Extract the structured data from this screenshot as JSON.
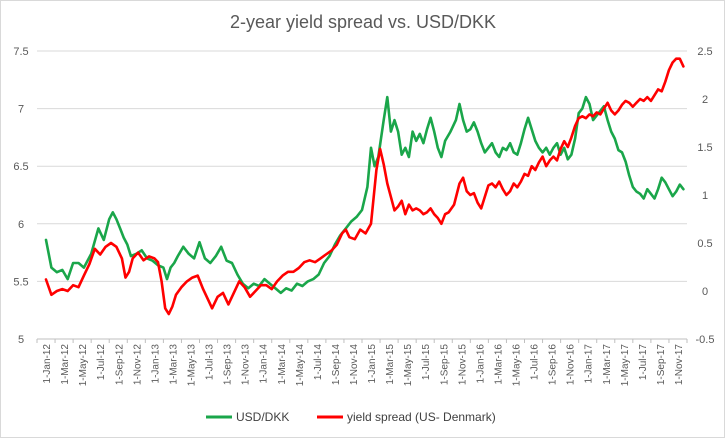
{
  "chart_data": {
    "type": "line",
    "title": "2-year yield spread vs. USD/DKK",
    "x_tick_labels": [
      "1-Jan-12",
      "1-Mar-12",
      "1-May-12",
      "1-Jul-12",
      "1-Sep-12",
      "1-Nov-12",
      "1-Jan-13",
      "1-Mar-13",
      "1-May-13",
      "1-Jul-13",
      "1-Sep-13",
      "1-Nov-13",
      "1-Jan-14",
      "1-Mar-14",
      "1-May-14",
      "1-Jul-14",
      "1-Sep-14",
      "1-Nov-14",
      "1-Jan-15",
      "1-Mar-15",
      "1-May-15",
      "1-Jul-15",
      "1-Sep-15",
      "1-Nov-15",
      "1-Jan-16",
      "1-Mar-16",
      "1-May-16",
      "1-Jul-16",
      "1-Sep-16",
      "1-Nov-16",
      "1-Jan-17",
      "1-Mar-17",
      "1-May-17",
      "1-Jul-17",
      "1-Sep-17",
      "1-Nov-17"
    ],
    "y_left": {
      "ylim": [
        5,
        7.5
      ],
      "ticks": [
        "5",
        "5.5",
        "6",
        "6.5",
        "7",
        "7.5"
      ]
    },
    "y_right": {
      "ylim": [
        -0.5,
        2.5
      ],
      "ticks": [
        "-0.5",
        "0",
        "0.5",
        "1",
        "1.5",
        "2",
        "2.5"
      ]
    },
    "grid": "horizontal",
    "legend_position": "bottom",
    "series": [
      {
        "name": "USD/DKK",
        "axis": "left",
        "color": "#1aa64a",
        "points": [
          [
            0,
            5.86
          ],
          [
            0.3,
            5.62
          ],
          [
            0.6,
            5.58
          ],
          [
            0.9,
            5.6
          ],
          [
            1.2,
            5.52
          ],
          [
            1.5,
            5.66
          ],
          [
            1.8,
            5.66
          ],
          [
            2.1,
            5.62
          ],
          [
            2.5,
            5.74
          ],
          [
            2.9,
            5.96
          ],
          [
            3.2,
            5.86
          ],
          [
            3.5,
            6.04
          ],
          [
            3.7,
            6.1
          ],
          [
            3.9,
            6.04
          ],
          [
            4.1,
            5.96
          ],
          [
            4.3,
            5.88
          ],
          [
            4.5,
            5.82
          ],
          [
            4.7,
            5.72
          ],
          [
            5.0,
            5.74
          ],
          [
            5.3,
            5.77
          ],
          [
            5.6,
            5.7
          ],
          [
            5.9,
            5.68
          ],
          [
            6.2,
            5.64
          ],
          [
            6.5,
            5.62
          ],
          [
            6.7,
            5.52
          ],
          [
            6.9,
            5.62
          ],
          [
            7.1,
            5.66
          ],
          [
            7.3,
            5.72
          ],
          [
            7.6,
            5.8
          ],
          [
            7.9,
            5.74
          ],
          [
            8.2,
            5.7
          ],
          [
            8.5,
            5.84
          ],
          [
            8.8,
            5.7
          ],
          [
            9.1,
            5.66
          ],
          [
            9.4,
            5.72
          ],
          [
            9.7,
            5.8
          ],
          [
            10.0,
            5.68
          ],
          [
            10.3,
            5.66
          ],
          [
            10.6,
            5.56
          ],
          [
            10.9,
            5.48
          ],
          [
            11.2,
            5.44
          ],
          [
            11.5,
            5.48
          ],
          [
            11.8,
            5.46
          ],
          [
            12.1,
            5.52
          ],
          [
            12.4,
            5.48
          ],
          [
            12.7,
            5.44
          ],
          [
            13.0,
            5.4
          ],
          [
            13.3,
            5.44
          ],
          [
            13.6,
            5.42
          ],
          [
            13.9,
            5.48
          ],
          [
            14.2,
            5.46
          ],
          [
            14.5,
            5.5
          ],
          [
            14.8,
            5.52
          ],
          [
            15.1,
            5.56
          ],
          [
            15.4,
            5.66
          ],
          [
            15.7,
            5.72
          ],
          [
            16.0,
            5.82
          ],
          [
            16.3,
            5.9
          ],
          [
            16.6,
            5.96
          ],
          [
            16.9,
            6.02
          ],
          [
            17.2,
            6.06
          ],
          [
            17.5,
            6.12
          ],
          [
            17.8,
            6.32
          ],
          [
            18.0,
            6.66
          ],
          [
            18.2,
            6.5
          ],
          [
            18.4,
            6.58
          ],
          [
            18.7,
            6.9
          ],
          [
            18.9,
            7.1
          ],
          [
            19.1,
            6.8
          ],
          [
            19.3,
            6.9
          ],
          [
            19.5,
            6.8
          ],
          [
            19.7,
            6.6
          ],
          [
            19.9,
            6.66
          ],
          [
            20.1,
            6.58
          ],
          [
            20.3,
            6.8
          ],
          [
            20.5,
            6.72
          ],
          [
            20.7,
            6.78
          ],
          [
            20.9,
            6.7
          ],
          [
            21.1,
            6.82
          ],
          [
            21.3,
            6.92
          ],
          [
            21.5,
            6.8
          ],
          [
            21.7,
            6.66
          ],
          [
            21.9,
            6.58
          ],
          [
            22.1,
            6.72
          ],
          [
            22.4,
            6.8
          ],
          [
            22.7,
            6.9
          ],
          [
            22.9,
            7.04
          ],
          [
            23.1,
            6.9
          ],
          [
            23.3,
            6.8
          ],
          [
            23.5,
            6.82
          ],
          [
            23.7,
            6.88
          ],
          [
            23.9,
            6.8
          ],
          [
            24.1,
            6.7
          ],
          [
            24.3,
            6.62
          ],
          [
            24.5,
            6.66
          ],
          [
            24.7,
            6.7
          ],
          [
            24.9,
            6.62
          ],
          [
            25.1,
            6.58
          ],
          [
            25.3,
            6.66
          ],
          [
            25.5,
            6.64
          ],
          [
            25.7,
            6.7
          ],
          [
            25.9,
            6.62
          ],
          [
            26.1,
            6.6
          ],
          [
            26.3,
            6.7
          ],
          [
            26.5,
            6.82
          ],
          [
            26.7,
            6.92
          ],
          [
            26.9,
            6.82
          ],
          [
            27.1,
            6.72
          ],
          [
            27.3,
            6.66
          ],
          [
            27.5,
            6.62
          ],
          [
            27.7,
            6.66
          ],
          [
            27.9,
            6.6
          ],
          [
            28.1,
            6.66
          ],
          [
            28.3,
            6.7
          ],
          [
            28.5,
            6.6
          ],
          [
            28.7,
            6.66
          ],
          [
            28.9,
            6.56
          ],
          [
            29.1,
            6.6
          ],
          [
            29.3,
            6.74
          ],
          [
            29.5,
            6.96
          ],
          [
            29.7,
            7.0
          ],
          [
            29.9,
            7.1
          ],
          [
            30.1,
            7.04
          ],
          [
            30.3,
            6.9
          ],
          [
            30.5,
            6.94
          ],
          [
            30.7,
            6.98
          ],
          [
            30.9,
            7.02
          ],
          [
            31.1,
            6.9
          ],
          [
            31.3,
            6.8
          ],
          [
            31.5,
            6.74
          ],
          [
            31.7,
            6.64
          ],
          [
            31.9,
            6.62
          ],
          [
            32.1,
            6.54
          ],
          [
            32.3,
            6.42
          ],
          [
            32.5,
            6.32
          ],
          [
            32.7,
            6.28
          ],
          [
            32.9,
            6.26
          ],
          [
            33.1,
            6.22
          ],
          [
            33.3,
            6.3
          ],
          [
            33.5,
            6.26
          ],
          [
            33.7,
            6.22
          ],
          [
            33.9,
            6.3
          ],
          [
            34.1,
            6.4
          ],
          [
            34.3,
            6.36
          ],
          [
            34.5,
            6.3
          ],
          [
            34.7,
            6.24
          ],
          [
            34.9,
            6.28
          ],
          [
            35.1,
            6.34
          ],
          [
            35.3,
            6.3
          ]
        ]
      },
      {
        "name": "yield spread (US- Denmark)",
        "axis": "right",
        "color": "#ff0000",
        "points": [
          [
            0,
            0.12
          ],
          [
            0.3,
            -0.04
          ],
          [
            0.6,
            0.0
          ],
          [
            0.9,
            0.02
          ],
          [
            1.2,
            0.0
          ],
          [
            1.5,
            0.06
          ],
          [
            1.8,
            0.04
          ],
          [
            2.1,
            0.16
          ],
          [
            2.4,
            0.28
          ],
          [
            2.7,
            0.44
          ],
          [
            3.0,
            0.38
          ],
          [
            3.3,
            0.46
          ],
          [
            3.6,
            0.5
          ],
          [
            3.9,
            0.46
          ],
          [
            4.2,
            0.34
          ],
          [
            4.4,
            0.14
          ],
          [
            4.6,
            0.2
          ],
          [
            4.8,
            0.34
          ],
          [
            5.1,
            0.4
          ],
          [
            5.4,
            0.32
          ],
          [
            5.7,
            0.36
          ],
          [
            6.0,
            0.34
          ],
          [
            6.2,
            0.3
          ],
          [
            6.4,
            0.1
          ],
          [
            6.6,
            -0.18
          ],
          [
            6.8,
            -0.24
          ],
          [
            7.0,
            -0.16
          ],
          [
            7.2,
            -0.04
          ],
          [
            7.5,
            0.04
          ],
          [
            7.8,
            0.1
          ],
          [
            8.1,
            0.14
          ],
          [
            8.4,
            0.16
          ],
          [
            8.7,
            0.02
          ],
          [
            9.0,
            -0.1
          ],
          [
            9.2,
            -0.18
          ],
          [
            9.5,
            -0.06
          ],
          [
            9.8,
            -0.02
          ],
          [
            10.1,
            -0.14
          ],
          [
            10.4,
            -0.02
          ],
          [
            10.7,
            0.1
          ],
          [
            11.0,
            0.04
          ],
          [
            11.3,
            -0.06
          ],
          [
            11.6,
            0.0
          ],
          [
            11.9,
            0.06
          ],
          [
            12.2,
            0.06
          ],
          [
            12.5,
            0.02
          ],
          [
            12.8,
            0.1
          ],
          [
            13.1,
            0.16
          ],
          [
            13.4,
            0.2
          ],
          [
            13.7,
            0.2
          ],
          [
            14.0,
            0.24
          ],
          [
            14.3,
            0.3
          ],
          [
            14.6,
            0.32
          ],
          [
            14.9,
            0.3
          ],
          [
            15.2,
            0.34
          ],
          [
            15.5,
            0.38
          ],
          [
            15.8,
            0.42
          ],
          [
            16.1,
            0.48
          ],
          [
            16.4,
            0.6
          ],
          [
            16.6,
            0.64
          ],
          [
            16.8,
            0.56
          ],
          [
            17.1,
            0.54
          ],
          [
            17.4,
            0.64
          ],
          [
            17.7,
            0.6
          ],
          [
            18.0,
            0.7
          ],
          [
            18.3,
            1.26
          ],
          [
            18.5,
            1.48
          ],
          [
            18.7,
            1.32
          ],
          [
            18.9,
            1.12
          ],
          [
            19.1,
            0.98
          ],
          [
            19.3,
            0.84
          ],
          [
            19.5,
            0.88
          ],
          [
            19.7,
            0.94
          ],
          [
            19.9,
            0.8
          ],
          [
            20.1,
            0.9
          ],
          [
            20.3,
            0.84
          ],
          [
            20.5,
            0.86
          ],
          [
            20.7,
            0.84
          ],
          [
            20.9,
            0.8
          ],
          [
            21.1,
            0.82
          ],
          [
            21.3,
            0.86
          ],
          [
            21.5,
            0.8
          ],
          [
            21.7,
            0.76
          ],
          [
            21.9,
            0.7
          ],
          [
            22.1,
            0.8
          ],
          [
            22.3,
            0.82
          ],
          [
            22.6,
            0.9
          ],
          [
            22.9,
            1.12
          ],
          [
            23.1,
            1.18
          ],
          [
            23.3,
            1.04
          ],
          [
            23.5,
            1.0
          ],
          [
            23.7,
            1.02
          ],
          [
            23.9,
            0.92
          ],
          [
            24.1,
            0.86
          ],
          [
            24.3,
            0.98
          ],
          [
            24.5,
            1.1
          ],
          [
            24.7,
            1.12
          ],
          [
            24.9,
            1.08
          ],
          [
            25.1,
            1.14
          ],
          [
            25.3,
            1.06
          ],
          [
            25.5,
            1.0
          ],
          [
            25.7,
            1.04
          ],
          [
            25.9,
            1.12
          ],
          [
            26.1,
            1.08
          ],
          [
            26.3,
            1.14
          ],
          [
            26.5,
            1.22
          ],
          [
            26.7,
            1.2
          ],
          [
            26.9,
            1.3
          ],
          [
            27.1,
            1.26
          ],
          [
            27.3,
            1.34
          ],
          [
            27.5,
            1.4
          ],
          [
            27.7,
            1.3
          ],
          [
            27.9,
            1.36
          ],
          [
            28.1,
            1.4
          ],
          [
            28.3,
            1.36
          ],
          [
            28.5,
            1.48
          ],
          [
            28.7,
            1.56
          ],
          [
            28.9,
            1.5
          ],
          [
            29.1,
            1.6
          ],
          [
            29.3,
            1.72
          ],
          [
            29.5,
            1.8
          ],
          [
            29.7,
            1.82
          ],
          [
            29.9,
            1.8
          ],
          [
            30.1,
            1.84
          ],
          [
            30.3,
            1.82
          ],
          [
            30.5,
            1.86
          ],
          [
            30.7,
            1.84
          ],
          [
            30.9,
            1.9
          ],
          [
            31.1,
            1.96
          ],
          [
            31.3,
            1.88
          ],
          [
            31.5,
            1.84
          ],
          [
            31.7,
            1.88
          ],
          [
            31.9,
            1.94
          ],
          [
            32.1,
            1.98
          ],
          [
            32.3,
            1.96
          ],
          [
            32.5,
            1.92
          ],
          [
            32.7,
            1.96
          ],
          [
            32.9,
            2.0
          ],
          [
            33.1,
            1.98
          ],
          [
            33.3,
            2.02
          ],
          [
            33.5,
            1.98
          ],
          [
            33.7,
            2.04
          ],
          [
            33.9,
            2.1
          ],
          [
            34.1,
            2.08
          ],
          [
            34.3,
            2.18
          ],
          [
            34.5,
            2.3
          ],
          [
            34.7,
            2.38
          ],
          [
            34.9,
            2.42
          ],
          [
            35.1,
            2.42
          ],
          [
            35.3,
            2.34
          ]
        ]
      }
    ]
  }
}
